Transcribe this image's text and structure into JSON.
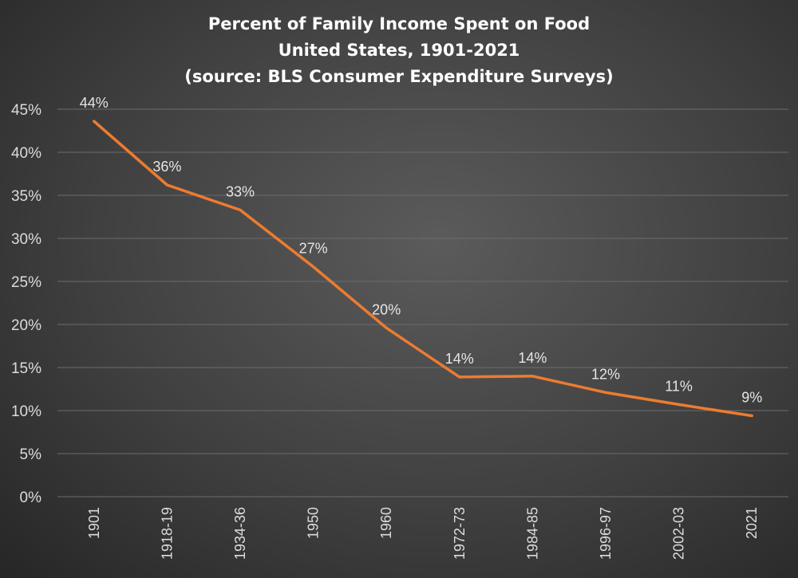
{
  "chart_data": {
    "type": "line",
    "title": [
      "Percent of Family Income Spent on Food",
      "United States, 1901-2021",
      "(source: BLS Consumer Expenditure Surveys)"
    ],
    "categories": [
      "1901",
      "1918-19",
      "1934-36",
      "1950",
      "1960",
      "1972-73",
      "1984-85",
      "1996-97",
      "2002-03",
      "2021"
    ],
    "series": [
      {
        "values": [
          43.6,
          36.2,
          33.3,
          26.7,
          19.6,
          13.9,
          14.0,
          12.1,
          10.7,
          9.4
        ],
        "data_labels": [
          "44%",
          "36%",
          "33%",
          "27%",
          "20%",
          "14%",
          "14%",
          "12%",
          "11%",
          "9%"
        ],
        "color": "#ec7c30"
      }
    ],
    "y_ticks": [
      "0%",
      "5%",
      "10%",
      "15%",
      "20%",
      "25%",
      "30%",
      "35%",
      "40%",
      "45%"
    ],
    "ylim": [
      0,
      45
    ],
    "grid": true,
    "legend": "none"
  }
}
